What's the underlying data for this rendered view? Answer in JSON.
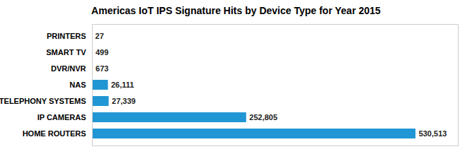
{
  "chart_data": {
    "type": "bar",
    "title": "Americas IoT IPS Signature Hits by Device Type for Year 2015",
    "orientation": "horizontal",
    "categories": [
      "HOME ROUTERS",
      "IP CAMERAS",
      "TELEPHONY SYSTEMS",
      "NAS",
      "DVR/NVR",
      "SMART TV",
      "PRINTERS"
    ],
    "values": [
      530513,
      252805,
      27339,
      26111,
      673,
      499,
      27
    ],
    "value_labels": [
      "530,513",
      "252,805",
      "27,339",
      "26,111",
      "673",
      "499",
      "27"
    ],
    "color": "#2196d4",
    "xlim": [
      0,
      600000
    ],
    "data_labels": true,
    "tick_labels": "y",
    "grid": false
  }
}
